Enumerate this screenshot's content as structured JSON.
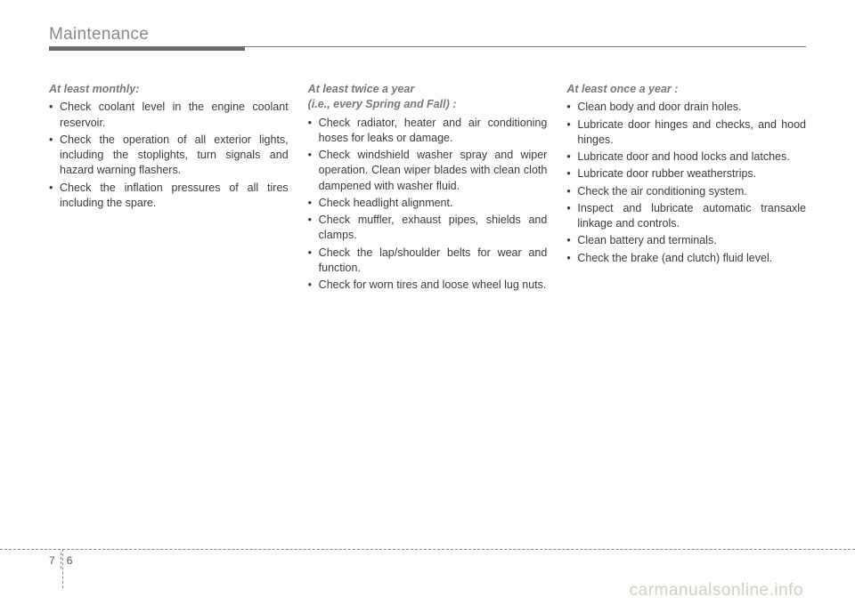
{
  "header": {
    "title": "Maintenance"
  },
  "columns": {
    "col1": {
      "heading": "At least monthly:",
      "items": [
        "Check coolant level in the engine coolant reservoir.",
        "Check the operation of all exterior lights, including the stoplights, turn signals and hazard warning flashers.",
        "Check the inflation pressures of all tires including the spare."
      ]
    },
    "col2": {
      "heading_line1": "At least twice a year",
      "heading_line2": "(i.e., every Spring and Fall) :",
      "items": [
        "Check radiator, heater and air conditioning hoses for leaks or damage.",
        "Check windshield washer spray and wiper operation. Clean wiper blades with clean cloth dampened with washer fluid.",
        "Check headlight alignment.",
        "Check muffler, exhaust pipes, shields and clamps.",
        "Check the lap/shoulder belts for wear and function.",
        "Check for worn tires and loose wheel lug nuts."
      ]
    },
    "col3": {
      "heading": "At least once a year :",
      "items": [
        "Clean body and door drain holes.",
        "Lubricate door hinges and checks, and hood hinges.",
        "Lubricate door and hood locks and latches.",
        "Lubricate door rubber weatherstrips.",
        "Check the air conditioning system.",
        "Inspect and lubricate automatic transaxle linkage and controls.",
        "Clean battery and terminals.",
        "Check the brake (and clutch) fluid level."
      ]
    }
  },
  "footer": {
    "section": "7",
    "page": "6"
  },
  "watermark": "carmanualsonline.info"
}
